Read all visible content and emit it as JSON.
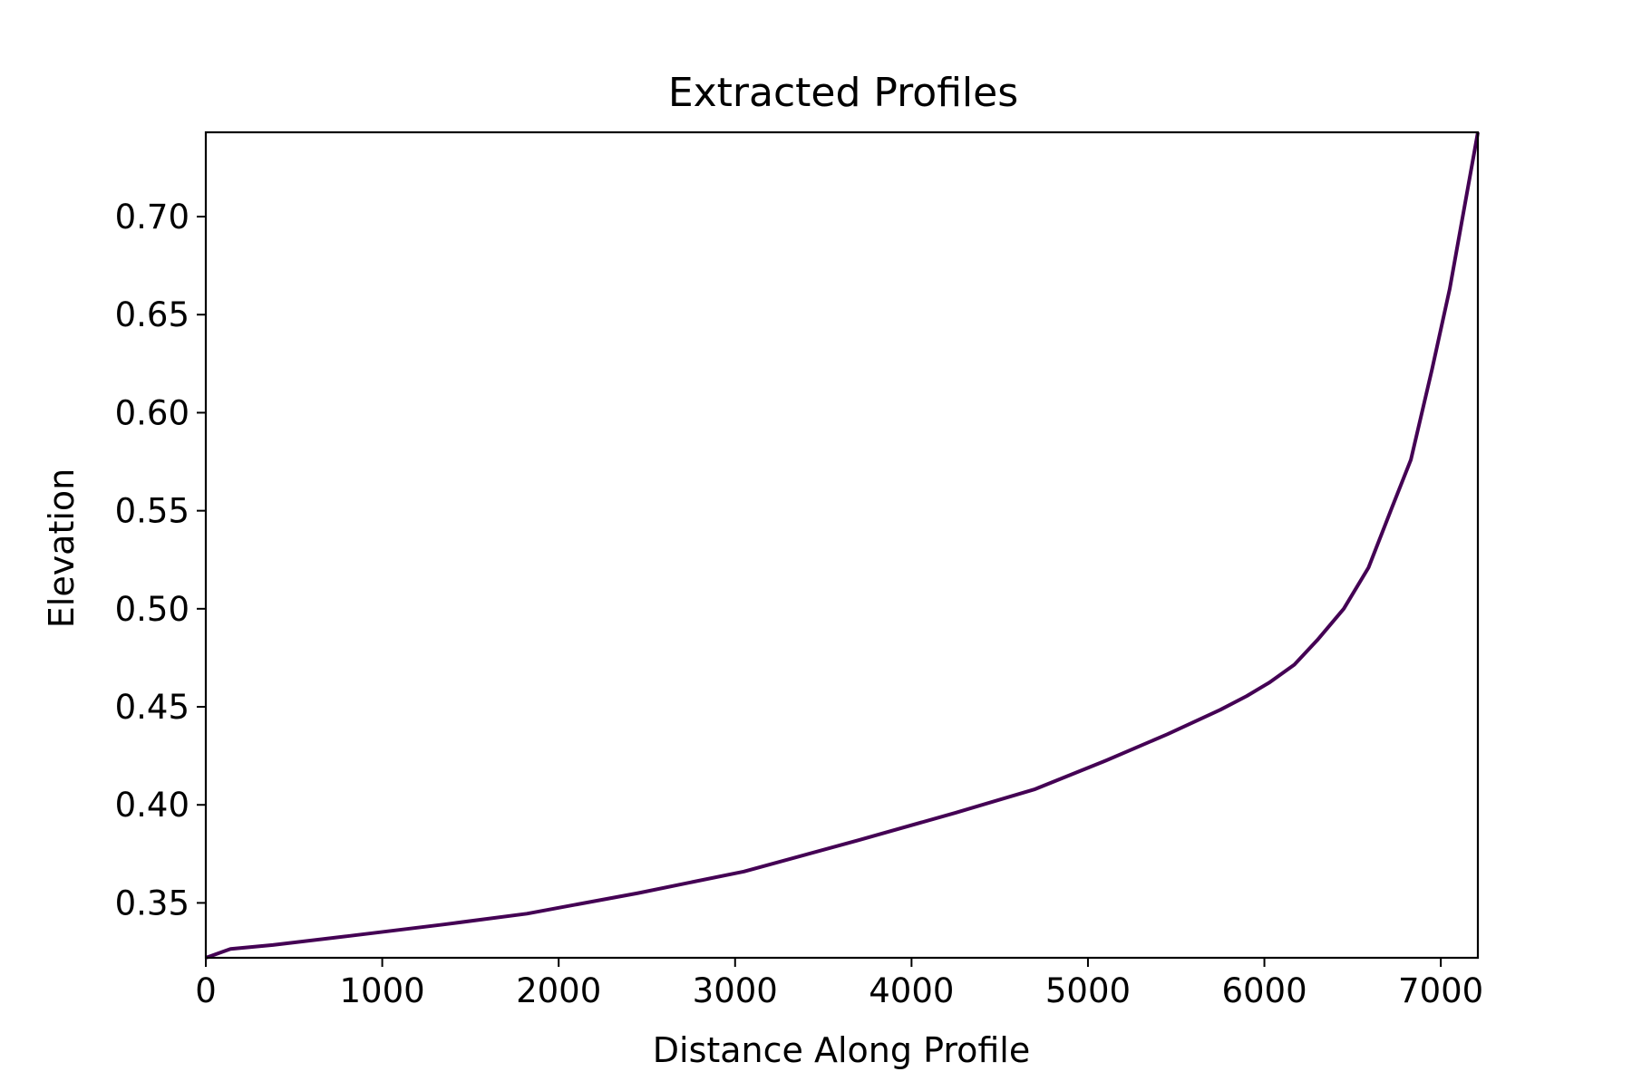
{
  "chart_data": {
    "type": "line",
    "title": "Extracted Profiles",
    "xlabel": "Distance Along Profile",
    "ylabel": "Elevation",
    "xlim": [
      0,
      7210
    ],
    "ylim": [
      0.322,
      0.743
    ],
    "x_ticks": [
      0,
      1000,
      2000,
      3000,
      4000,
      5000,
      6000,
      7000
    ],
    "y_ticks": [
      0.35,
      0.4,
      0.45,
      0.5,
      0.55,
      0.6,
      0.65,
      0.7
    ],
    "y_tick_labels": [
      "0.35",
      "0.40",
      "0.45",
      "0.50",
      "0.55",
      "0.60",
      "0.65",
      "0.70"
    ],
    "grid": false,
    "legend": "none",
    "series": [
      {
        "color": "#440154",
        "x": [
          0,
          140,
          380,
          800,
          1350,
          1820,
          2450,
          3050,
          3700,
          4250,
          4700,
          5100,
          5450,
          5750,
          5900,
          6030,
          6170,
          6300,
          6450,
          6590,
          6720,
          6830,
          6950,
          7050,
          7210
        ],
        "y": [
          0.322,
          0.3265,
          0.3285,
          0.333,
          0.339,
          0.3445,
          0.355,
          0.366,
          0.382,
          0.396,
          0.408,
          0.4225,
          0.436,
          0.4485,
          0.4555,
          0.4625,
          0.4715,
          0.484,
          0.5,
          0.521,
          0.551,
          0.576,
          0.622,
          0.663,
          0.743
        ]
      }
    ]
  }
}
